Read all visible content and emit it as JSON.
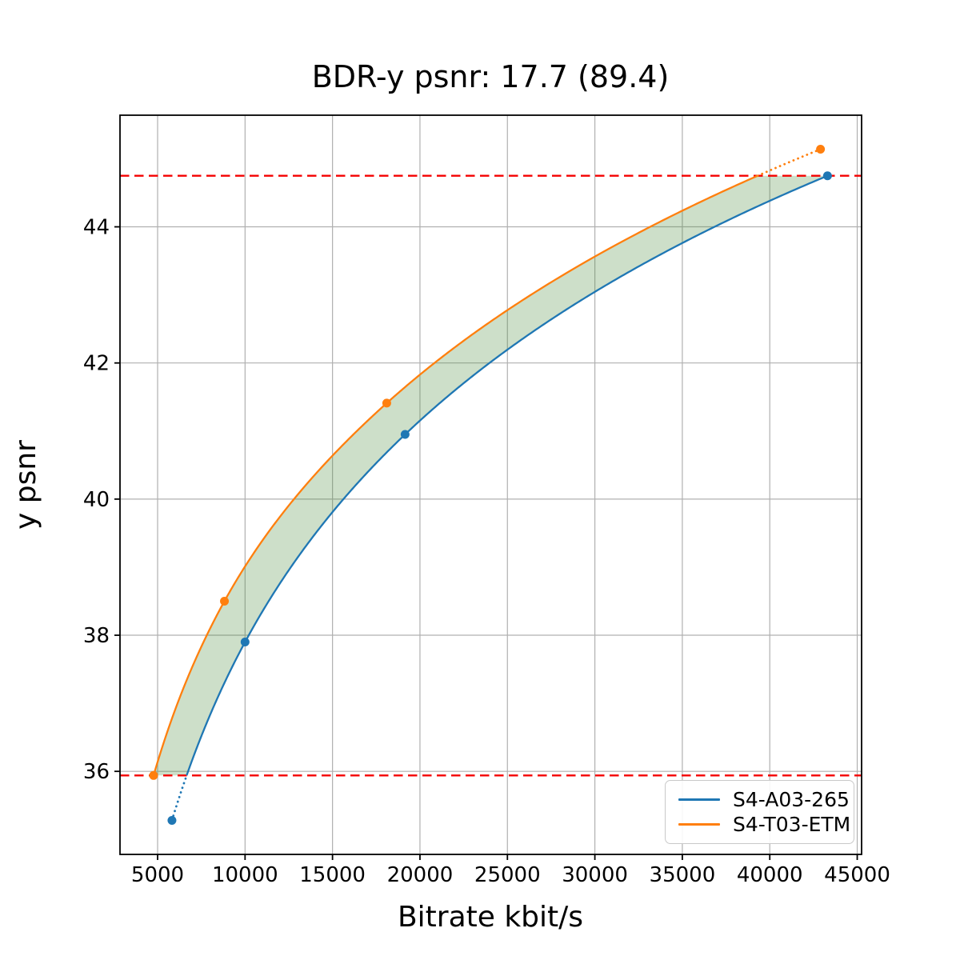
{
  "chart_data": {
    "type": "line",
    "title": "BDR-y psnr: 17.7 (89.4)",
    "xlabel": "Bitrate kbit/s",
    "ylabel": "y psnr",
    "xlim": [
      2850,
      45250
    ],
    "ylim": [
      34.78,
      45.64
    ],
    "xticks": [
      5000,
      10000,
      15000,
      20000,
      25000,
      30000,
      35000,
      40000,
      45000
    ],
    "yticks": [
      36,
      38,
      40,
      42,
      44
    ],
    "grid": true,
    "grid_color": "#b0b0b0",
    "interpolation": "pchip-log-x",
    "series": [
      {
        "name": "S4-A03-265",
        "color": "#1f77b4",
        "x": [
          5820,
          10000,
          19150,
          43300
        ],
        "y": [
          35.28,
          37.9,
          40.95,
          44.75
        ]
      },
      {
        "name": "S4-T03-ETM",
        "color": "#ff7f0e",
        "x": [
          4770,
          8820,
          18100,
          42900
        ],
        "y": [
          35.94,
          38.5,
          41.41,
          45.14
        ]
      }
    ],
    "overlap_ref_lines": {
      "color": "#f40000",
      "style": "dashed",
      "y_values": [
        35.94,
        44.75
      ]
    },
    "fill_between": {
      "color": "#4c8c3c",
      "opacity": 0.28,
      "between": [
        "S4-T03-ETM",
        "S4-A03-265"
      ],
      "y_range": [
        35.94,
        44.75
      ]
    },
    "legend": {
      "position": "lower right",
      "entries": [
        "S4-A03-265",
        "S4-T03-ETM"
      ]
    }
  }
}
